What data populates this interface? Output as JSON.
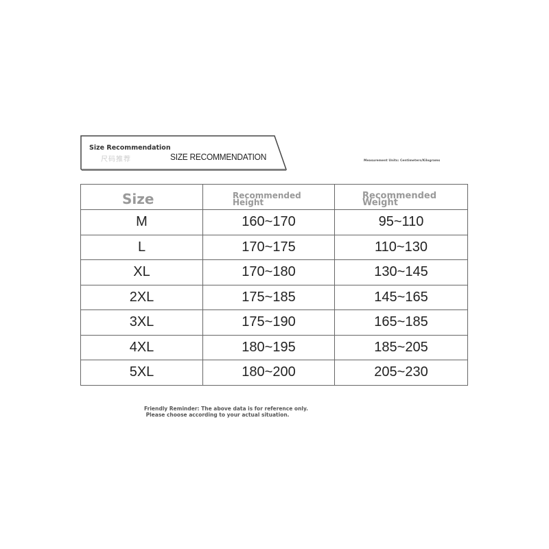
{
  "banner": {
    "small_title": "Size Recommendation",
    "faded_text": "尺码推荐",
    "main_title": "SIZE RECOMMENDATION"
  },
  "units": "Measurement Units: Centimeters/Kilograms",
  "table": {
    "headers": [
      "Size",
      "Recommended Height",
      "Recommended Weight"
    ],
    "rows": [
      [
        "M",
        "160~170",
        "95~110"
      ],
      [
        "L",
        "170~175",
        "110~130"
      ],
      [
        "XL",
        "170~180",
        "130~145"
      ],
      [
        "2XL",
        "175~185",
        "145~165"
      ],
      [
        "3XL",
        "175~190",
        "165~185"
      ],
      [
        "4XL",
        "180~195",
        "185~205"
      ],
      [
        "5XL",
        "180~200",
        "205~230"
      ]
    ]
  },
  "reminder": {
    "line1": "Friendly Reminder: The above data is for reference only.",
    "line2": " Please choose according to your actual situation."
  }
}
